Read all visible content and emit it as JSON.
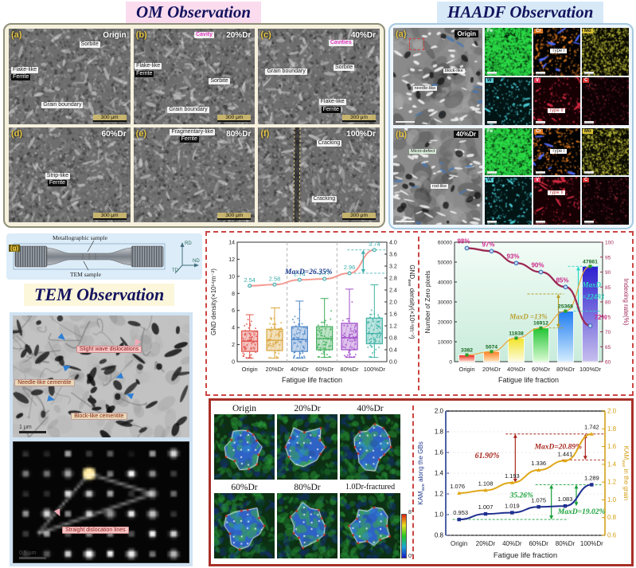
{
  "titles": {
    "om": "OM Observation",
    "haadf": "HAADF Observation",
    "tem": "TEM Observation"
  },
  "om_panels": [
    {
      "letter": "(a)",
      "tag": "Origin",
      "l1": "Sorbite",
      "l2": "Flake-like",
      "l3": "Ferrite",
      "l4": "Grain boundary",
      "scale": "300 μm"
    },
    {
      "letter": "(b)",
      "tag": "20%Dr",
      "cavity": "Cavity",
      "l1": "Sorbite",
      "l2": "Flake-like",
      "l3": "Ferrite",
      "l4": "Grain boundary",
      "scale": "300 μm"
    },
    {
      "letter": "(c)",
      "tag": "40%Dr",
      "cavity": "Cavities",
      "l1": "Sorbite",
      "l2": "Flake-like",
      "l3": "Ferrite",
      "l4": "Grain boundary",
      "scale": "300 μm"
    },
    {
      "letter": "(d)",
      "tag": "60%Dr",
      "l2": "Strip-like",
      "l3": "Ferrite",
      "scale": "300 μm"
    },
    {
      "letter": "(e)",
      "tag": "80%Dr",
      "l2": "Fragmentary-like",
      "l3": "Ferrite",
      "scale": "300 μm"
    },
    {
      "letter": "(f)",
      "tag": "100%Dr",
      "l1": "Cracking",
      "l4": "Cracking",
      "scale": "300 μm"
    }
  ],
  "haadf_rows": [
    {
      "letter": "(a)",
      "tag": "Origin",
      "ann1": "needle-like",
      "ann2": "block-like"
    },
    {
      "letter": "(b)",
      "tag": "40%Dr",
      "ann1": "Micro-defect",
      "ann2": "rod-like"
    }
  ],
  "eds_elements": [
    "Fe",
    "Cr",
    "Mo",
    "W",
    "V",
    "C"
  ],
  "eds_types": {
    "type1": "Type I",
    "type2": "Type II"
  },
  "specimen": {
    "letter": "(g)",
    "top_label": "Metallographic sample",
    "bottom_label": "TEM sample",
    "axes": [
      "RD",
      "ND",
      "TD"
    ]
  },
  "tem_labels": {
    "wave": "Slight wave dislocations",
    "needle": "Needle-like cementite",
    "block": "Block-like cementite",
    "straight": "Straight dislocation lines",
    "scale1": "1 μm",
    "scale2": "0.5 μm"
  },
  "kam_maps": {
    "labels": [
      "Origin",
      "20%Dr",
      "40%Dr",
      "60%Dr",
      "80%Dr",
      "1.0Dr-fractured"
    ],
    "scale_top": "8°",
    "scale_bottom": "0°"
  },
  "chart_data": [
    {
      "id": "gnd",
      "type": "box",
      "categories": [
        "Origin",
        "20%Dr",
        "40%Dr",
        "60%Dr",
        "80%Dr",
        "100%Dr"
      ],
      "xlabel": "Fatigue life fraction",
      "ylabel_left": "GND density(×10¹⁴m⁻²)",
      "ylabel_right": "GND_ave density(×10¹⁴m⁻²)",
      "ylim_left": [
        0,
        14
      ],
      "ytick_left": 2,
      "ylim_right": [
        0,
        4.0
      ],
      "ytick_right": 0.4,
      "boxes": [
        {
          "low": 0.4,
          "q1": 1.2,
          "med": 2.4,
          "q3": 3.6,
          "high": 5.5
        },
        {
          "low": 0.4,
          "q1": 1.3,
          "med": 2.5,
          "q3": 3.8,
          "high": 6.3
        },
        {
          "low": 0.4,
          "q1": 1.2,
          "med": 2.6,
          "q3": 4.1,
          "high": 7.1
        },
        {
          "low": 0.5,
          "q1": 1.4,
          "med": 2.7,
          "q3": 4.1,
          "high": 7.4
        },
        {
          "low": 0.5,
          "q1": 1.4,
          "med": 2.8,
          "q3": 4.5,
          "high": 8.5
        },
        {
          "low": 0.5,
          "q1": 2.1,
          "med": 3.3,
          "q3": 5.1,
          "high": 9.0
        }
      ],
      "colors": [
        "#e0544c",
        "#d9a63e",
        "#4e86c8",
        "#3fae5a",
        "#a14fc9",
        "#3fb3a5"
      ],
      "ave_series": {
        "name": "GND_ave density",
        "values": [
          2.54,
          2.58,
          2.74,
          2.77,
          2.96,
          3.74
        ]
      },
      "annotation": "MaxD=26.35%"
    },
    {
      "id": "zero",
      "type": "bar",
      "categories": [
        "Origin",
        "20%Dr",
        "40%Dr",
        "60%Dr",
        "80%Dr",
        "100%Dr"
      ],
      "xlabel": "Fatigue life fraction",
      "ylabel": "Number of Zero pixels",
      "ylim": [
        0,
        60000
      ],
      "ytick": 10000,
      "y2label": "Indexing rate(%)",
      "y2lim": [
        60,
        100
      ],
      "y2tick": 5,
      "values": [
        3382,
        5074,
        11838,
        16912,
        25368,
        47861
      ],
      "rate_values": [
        98,
        97,
        93,
        90,
        85,
        72
      ],
      "bar_colors": [
        [
          "#e8281e",
          "#ffd9cc"
        ],
        [
          "#ff7d22",
          "#ffe4ba"
        ],
        [
          "#f2e428",
          "#fdfce0"
        ],
        [
          "#21c433",
          "#dcfbd4"
        ],
        [
          "#1f7cf0",
          "#d2ecff"
        ],
        [
          "#2a1ecf",
          "#c7bfee"
        ]
      ],
      "ann_yellow": "MaxD =13%",
      "ann_cyan_line1": "MaxD",
      "ann_cyan_line2": "=22493"
    },
    {
      "id": "kam",
      "type": "line",
      "categories": [
        "Origin",
        "20%Dr",
        "40%Dr",
        "60%Dr",
        "80%Dr",
        "100%Dr"
      ],
      "xlabel": "Fatigue life fraction",
      "ylabel_left": "KAM_ave along the GBs",
      "ylim_left": [
        0.8,
        2.0
      ],
      "ytick_left": 0.2,
      "ylabel_right": "KAM_ave in the grain",
      "ylim_right": [
        0.6,
        2.0
      ],
      "ytick_right": 0.2,
      "series": [
        {
          "name": "KAM_ave along the GBs",
          "axis": "left",
          "color": "#1f2f8f",
          "values": [
            0.953,
            1.007,
            1.019,
            1.075,
            1.083,
            1.289
          ]
        },
        {
          "name": "KAM_ave in the grain",
          "axis": "right",
          "color": "#e0a818",
          "values": [
            1.076,
            1.108,
            1.193,
            1.336,
            1.441,
            1.742
          ]
        }
      ],
      "annotations": [
        {
          "text": "61.90%",
          "color": "#a82820"
        },
        {
          "text": "MaxD=20.89%",
          "color": "#a82820"
        },
        {
          "text": "35.26%",
          "color": "#17a038"
        },
        {
          "text": "MaxD=19.02%",
          "color": "#17a038"
        }
      ]
    }
  ]
}
